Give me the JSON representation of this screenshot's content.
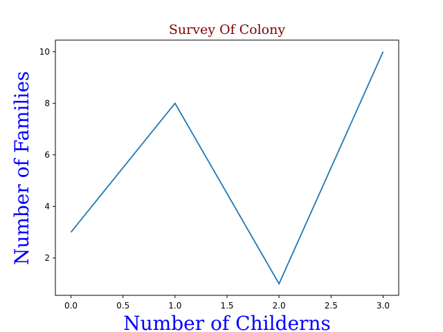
{
  "chart_data": {
    "type": "line",
    "title": "Survey Of Colony",
    "xlabel": "Number of Childerns",
    "ylabel": "Number of Families",
    "x": [
      0,
      1,
      2,
      3
    ],
    "series": [
      {
        "values": [
          3,
          8,
          1,
          10
        ]
      }
    ],
    "xlim": [
      -0.15,
      3.15
    ],
    "ylim": [
      0.55,
      10.45
    ],
    "xticks": [
      0,
      0.5,
      1,
      1.5,
      2,
      2.5,
      3
    ],
    "xtick_labels": [
      "0.0",
      "0.5",
      "1.0",
      "1.5",
      "2.0",
      "2.5",
      "3.0"
    ],
    "yticks": [
      2,
      4,
      6,
      8,
      10
    ],
    "ytick_labels": [
      "2",
      "4",
      "6",
      "8",
      "10"
    ],
    "grid": false,
    "colors": {
      "title": "#800000",
      "axis_labels": "#0000ff",
      "line": "#1f77b4"
    }
  }
}
